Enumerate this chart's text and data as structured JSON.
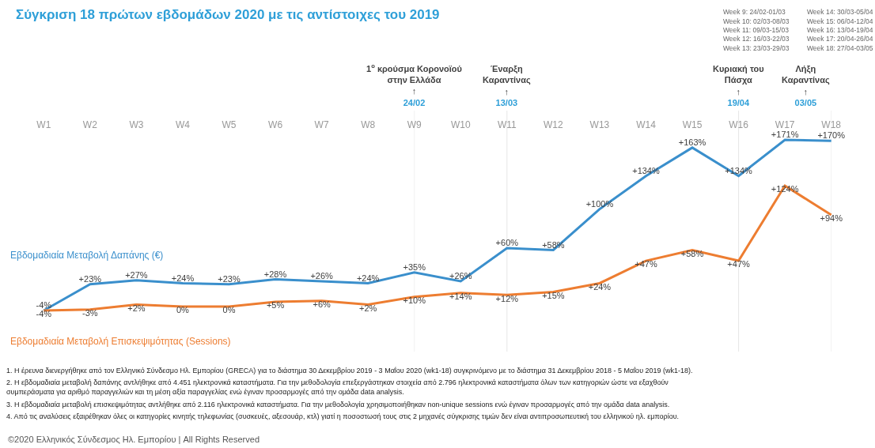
{
  "chart_data": {
    "type": "line",
    "title": "Σύγκριση 18 πρώτων εβδομάδων 2020 με τις αντίστοιχες του 2019",
    "categories": [
      "W1",
      "W2",
      "W3",
      "W4",
      "W5",
      "W6",
      "W7",
      "W8",
      "W9",
      "W10",
      "W11",
      "W12",
      "W13",
      "W14",
      "W15",
      "W16",
      "W17",
      "W18"
    ],
    "series": [
      {
        "name": "Εβδομαδιαία Μεταβολή Δαπάνης (€)",
        "color": "#3a8fcc",
        "values": [
          -4,
          23,
          27,
          24,
          23,
          28,
          26,
          24,
          35,
          26,
          60,
          58,
          100,
          134,
          163,
          134,
          171,
          170
        ],
        "value_labels": [
          "-4%",
          "+23%",
          "+27%",
          "+24%",
          "+23%",
          "+28%",
          "+26%",
          "+24%",
          "+35%",
          "+26%",
          "+60%",
          "+58%",
          "+100%",
          "+134%",
          "+163%",
          "+134%",
          "+171%",
          "+170%"
        ]
      },
      {
        "name": "Εβδομαδιαία Μεταβολή Επισκεψιμότητας (Sessions)",
        "color": "#ed7d31",
        "values": [
          -4,
          -3,
          2,
          0,
          0,
          5,
          6,
          2,
          10,
          14,
          12,
          15,
          24,
          47,
          58,
          47,
          124,
          94
        ],
        "value_labels": [
          "-4%",
          "-3%",
          "+2%",
          "0%",
          "0%",
          "+5%",
          "+6%",
          "+2%",
          "+10%",
          "+14%",
          "+12%",
          "+15%",
          "+24%",
          "+47%",
          "+58%",
          "+47%",
          "+124%",
          "+94%"
        ]
      }
    ],
    "tick_labels": "x",
    "grid": false,
    "legend": false,
    "marker": "none",
    "line_style": "solid",
    "ref_lines": [
      {
        "axis": "x",
        "value": "W9",
        "label": "1$^{ο}$ κρούσμα Κορονοϊού\nστην Ελλάδα\n↑\n24/02",
        "color": "#f2f2f2"
      },
      {
        "axis": "x",
        "value": "W11",
        "label": "Έναρξη\nΚαραντίνας\n↑\n13/03",
        "color": "#e6e6e6"
      },
      {
        "axis": "x",
        "value": "W16",
        "label": "Κυριακή του\nΠάσχα\n↑\n19/04",
        "color": "#e6e6e6"
      },
      {
        "axis": "x",
        "value": "W18",
        "label": "Λήξη\nΚαραντίνας\n↑\n03/05",
        "color": "#f2f2f2"
      }
    ],
    "annotations": [
      "Week 9: 24/02-01/03",
      "Week 10: 02/03-08/03",
      "Week 11: 09/03-15/03",
      "Week 12: 16/03-22/03",
      "Week 13: 23/03-29/03",
      "Week 14: 30/03-05/04",
      "Week 15: 06/04-12/04",
      "Week 16: 13/04-19/04",
      "Week 17: 20/04-26/04",
      "Week 18: 27/04-03/05",
      "1. Η έρευνα διενεργήθηκε από τον Ελληνικό Σύνδεσμο Ηλ. Εμπορίου (GRECA) για το διάστημα 30 Δεκεμβρίου 2019 - 3 Μαΐου 2020 (wk1-18) συγκρινόμενο με το διάστημα 31 Δεκεμβρίου 2018 - 5 Μαΐου 2019 (wk1-18).",
      "2. Η εβδομαδιαία μεταβολή δαπάνης αντλήθηκε από 4.451 ηλεκτρονικά καταστήματα. Για την μεθοδολογία επεξεργάστηκαν στοιχεία από 2.796 ηλεκτρονικά καταστήματα όλων των κατηγοριών ώστε να εξαχθούν\nσυμπεράσματα για αριθμό παραγγελιών και τη μέση αξία παραγγελίας ενώ έγιναν προσαρμογές από την ομάδα data analysis.",
      "3. Η εβδομαδιαία μεταβολή επισκεψιμότητας αντλήθηκε από 2.116 ηλεκτρονικά καταστήματα. Για την μεθοδολογία χρησιμοποιήθηκαν non-unique sessions ενώ έγιναν προσαρμογές από την ομάδα data analysis.",
      "4. Από τις αναλύσεις εξαιρέθηκαν όλες οι κατηγορίες κινητής τηλεφωνίας (συσκευές, αξεσουάρ, κτλ) γιατί η ποσοστωσή τους στις 2 μηχανές σύγκρισης τιμών δεν είναι αντιπροσωπευτική του ελληνικού ηλ. εμπορίου.",
      "©2020 Ελληνικός Σύνδεσμος Ηλ. Εμπορίου | All Rights Reserved"
    ]
  }
}
